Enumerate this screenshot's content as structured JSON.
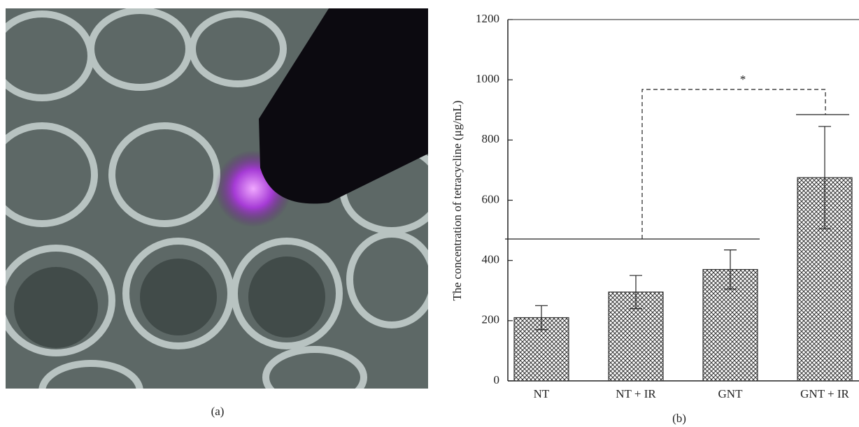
{
  "figure": {
    "panel_a_label": "(a)",
    "panel_b_label": "(b)"
  },
  "chart_data": {
    "type": "bar",
    "ylabel": "The concentration of tetracycline (μg/mL)",
    "categories": [
      "NT",
      "NT + IR",
      "GNT",
      "GNT + IR"
    ],
    "values": [
      210,
      295,
      370,
      675
    ],
    "errors": [
      40,
      55,
      65,
      170
    ],
    "ylim": [
      0,
      1200
    ],
    "yticks": [
      0,
      200,
      400,
      600,
      800,
      1000,
      1200
    ],
    "annotation": "*",
    "color": "#333333"
  }
}
